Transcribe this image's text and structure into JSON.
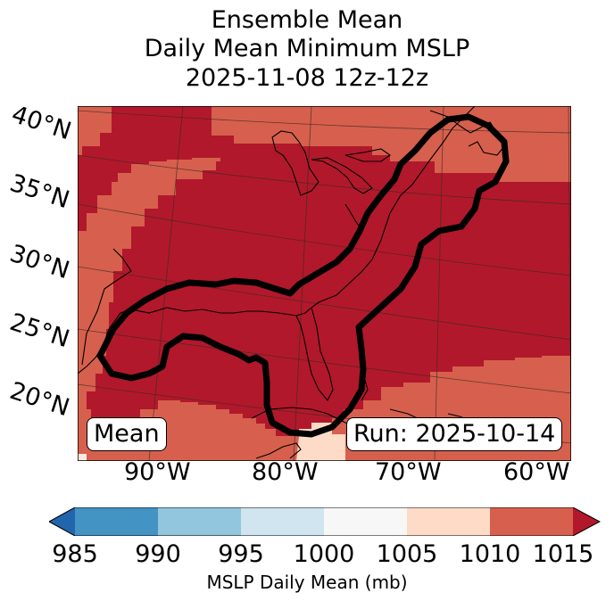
{
  "title": {
    "line1": "Ensemble Mean",
    "line2": "Daily Mean Minimum MSLP",
    "line3": "2025-11-08 12z-12z"
  },
  "lat_labels": [
    "40°N",
    "35°N",
    "30°N",
    "25°N",
    "20°N"
  ],
  "lon_labels": [
    "90°W",
    "80°W",
    "70°W",
    "60°W"
  ],
  "badges": {
    "left": "Mean",
    "right": "Run: 2025-10-14"
  },
  "colorbar": {
    "ticks": [
      "985",
      "990",
      "995",
      "1000",
      "1005",
      "1010",
      "1015"
    ],
    "label": "MSLP Daily Mean (mb)",
    "colors": {
      "under": "#2166ac",
      "c985_990": "#4393c3",
      "c990_995": "#92c5de",
      "c995_1000": "#d1e5f0",
      "c1000_1005": "#f7f7f7",
      "c1005_1010": "#fddbc7",
      "c1010_1015": "#d6604d",
      "over": "#b2182b"
    }
  },
  "map_colors": {
    "outer": "#d6604d",
    "inner": "#b2182b",
    "light": "#fddbc7",
    "lightest": "#fbe9e0"
  }
}
